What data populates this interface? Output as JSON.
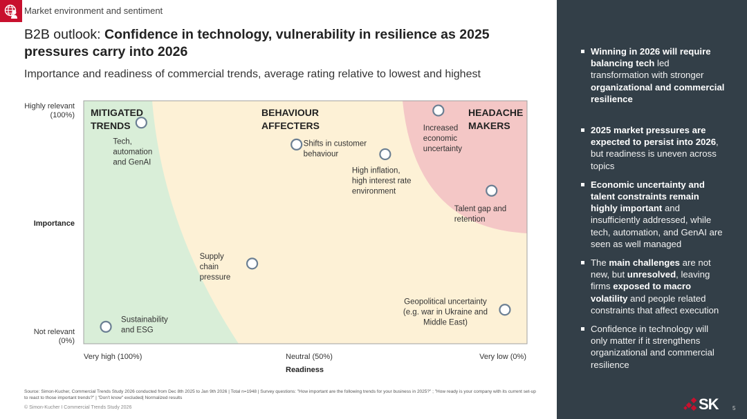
{
  "header": {
    "section_icon": "globe-person-icon",
    "section_label": "Market environment and sentiment",
    "title_prefix": "B2B outlook: ",
    "title_bold": "Confidence in technology, vulnerability in resilience as 2025 pressures carry into 2026",
    "subtitle": "Importance and readiness of commercial trends, average rating relative to lowest and highest"
  },
  "colors": {
    "brand_red": "#c8102e",
    "zone_mitigated": "#d9eed8",
    "zone_behaviour": "#fdf1d6",
    "zone_headache": "#f4c7c6",
    "marker_stroke": "#6b7f93",
    "panel_bg": "#333f48"
  },
  "chart_data": {
    "type": "scatter",
    "title": "Importance and readiness of commercial trends",
    "xlabel": "Readiness",
    "ylabel": "Importance",
    "x_axis_reversed": true,
    "xlim": [
      100,
      0
    ],
    "ylim": [
      0,
      100
    ],
    "x_tick_labels": [
      {
        "value": 100,
        "label": "Very high (100%)"
      },
      {
        "value": 50,
        "label": "Neutral (50%)"
      },
      {
        "value": 0,
        "label": "Very low (0%)"
      }
    ],
    "y_tick_labels": [
      {
        "value": 100,
        "label": "Highly relevant\n(100%)"
      },
      {
        "value": 0,
        "label": "Not relevant\n(0%)"
      }
    ],
    "grid": false,
    "zones": [
      {
        "name": "MITIGATED\nTRENDS",
        "position": "left"
      },
      {
        "name": "BEHAVIOUR\nAFFECTERS",
        "position": "center"
      },
      {
        "name": "HEADACHE\nMAKERS",
        "position": "top-right"
      }
    ],
    "points": [
      {
        "label": "Tech,\nautomation\nand GenAI",
        "readiness": 87,
        "importance": 91
      },
      {
        "label": "Increased\neconomic\nuncertainty",
        "readiness": 20,
        "importance": 96
      },
      {
        "label": "Shifts in customer\nbehaviour",
        "readiness": 52,
        "importance": 82
      },
      {
        "label": "High inflation,\nhigh interest rate\nenvironment",
        "readiness": 32,
        "importance": 78
      },
      {
        "label": "Talent gap and\nretention",
        "readiness": 8,
        "importance": 63
      },
      {
        "label": "Supply\nchain\npressure",
        "readiness": 62,
        "importance": 33
      },
      {
        "label": "Geopolitical uncertainty\n(e.g. war in Ukraine and\nMiddle East)",
        "readiness": 5,
        "importance": 14
      },
      {
        "label": "Sustainability\nand ESG",
        "readiness": 95,
        "importance": 7
      }
    ]
  },
  "footer": {
    "source": "Source: Simon-Kucher, Commercial Trends Study 2026 conducted from Dec 8th 2025 to Jan 9th  2026 | Total n=1948  | Survey questions: \"How important are the following trends for your business in 2025?\" ; \"How ready is your company with its current set-up to react to those important trends?\" | \"Don't know\" excluded| Normalized results",
    "copyright": "© Simon-Kucher  I  Commercial Trends Study 2026"
  },
  "side_panel": {
    "bullets": [
      [
        {
          "t": "Winning in 2026 will require balancing tech",
          "b": true
        },
        {
          "t": " led transformation with stronger ",
          "b": false
        },
        {
          "t": "organizational and commercial resilience",
          "b": true
        }
      ],
      [
        {
          "t": "2025 market pressures are expected to persist into 2026",
          "b": true
        },
        {
          "t": ", but readiness is uneven across topics",
          "b": false
        }
      ],
      [
        {
          "t": "Economic uncertainty and talent constraints remain highly important",
          "b": true
        },
        {
          "t": " and insufficiently addressed, while tech, automation, and GenAI are seen as well managed",
          "b": false
        }
      ],
      [
        {
          "t": "The ",
          "b": false
        },
        {
          "t": "main challenges",
          "b": true
        },
        {
          "t": " are not new, but ",
          "b": false
        },
        {
          "t": "unresolved",
          "b": true
        },
        {
          "t": ", leaving firms ",
          "b": false
        },
        {
          "t": "exposed to macro volatility",
          "b": true
        },
        {
          "t": " and people related constraints that affect execution",
          "b": false
        }
      ],
      [
        {
          "t": "Confidence in technology will only matter if it strengthens organizational and commercial resilience",
          "b": false
        }
      ]
    ],
    "logo_text": "SK",
    "page_number": "5"
  }
}
